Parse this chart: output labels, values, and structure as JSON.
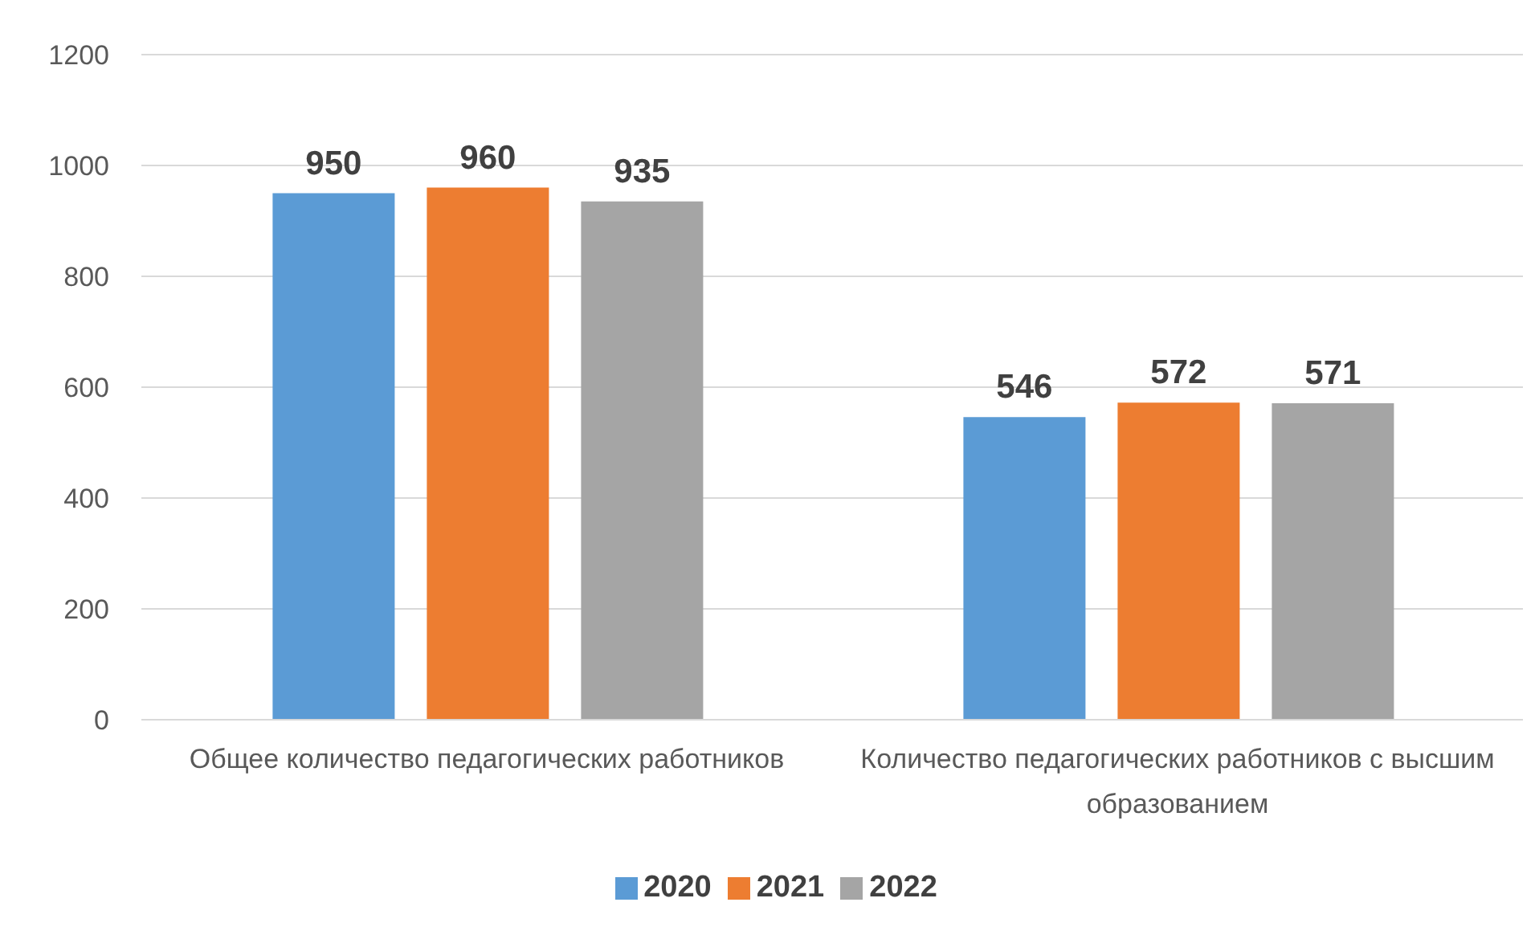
{
  "chart_data": {
    "type": "bar",
    "categories": [
      "Общее количество педагогических работников",
      "Количество педагогических работников с высшим образованием"
    ],
    "series": [
      {
        "name": "2020",
        "color": "#5b9bd5",
        "values": [
          950,
          546
        ]
      },
      {
        "name": "2021",
        "color": "#ed7d31",
        "values": [
          960,
          572
        ]
      },
      {
        "name": "2022",
        "color": "#a5a5a5",
        "values": [
          935,
          571
        ]
      }
    ],
    "ylim": [
      0,
      1200
    ],
    "yticks": [
      0,
      200,
      400,
      600,
      800,
      1000,
      1200
    ],
    "grid": "y",
    "legend": "bottom",
    "data_labels": true
  }
}
